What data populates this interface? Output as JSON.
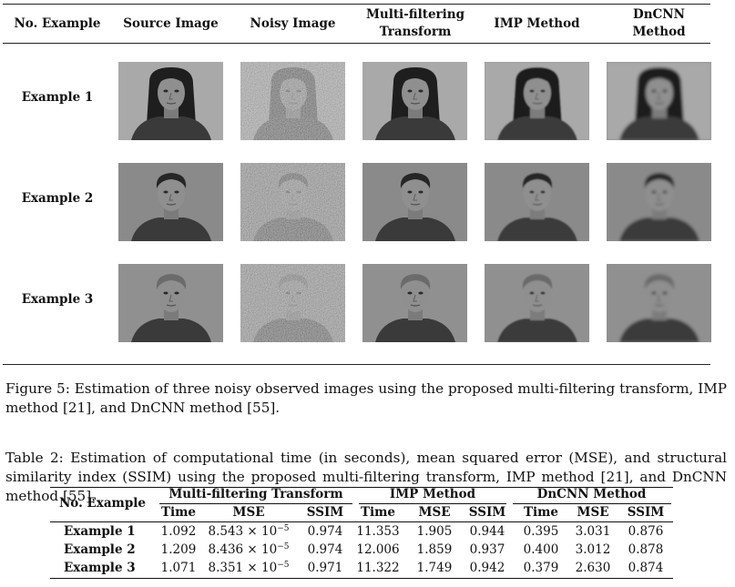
{
  "figure": {
    "columns": [
      "No. Example",
      "Source Image",
      "Noisy Image",
      "Multi-filtering Transform",
      "IMP Method",
      "DnCNN Method"
    ],
    "rows": [
      "Example 1",
      "Example 2",
      "Example 3"
    ],
    "caption": "Figure 5: Estimation of three noisy observed images using the proposed multi-filtering transform, IMP method [21], and DnCNN method [55]."
  },
  "table": {
    "caption": "Table 2: Estimation of computational time (in seconds), mean squared error (MSE), and structural similarity index (SSIM) using the proposed multi-filtering transform, IMP method [21], and DnCNN method [55].",
    "row_header": "No. Example",
    "groups": [
      "Multi-filtering Transform",
      "IMP Method",
      "DnCNN Method"
    ],
    "subheaders": [
      "Time",
      "MSE",
      "SSIM",
      "Time",
      "MSE",
      "SSIM",
      "Time",
      "MSE",
      "SSIM"
    ],
    "rows": [
      {
        "label": "Example 1",
        "cells": [
          "1.092",
          "8.543 × 10",
          "0.974",
          "11.353",
          "1.905",
          "0.944",
          "0.395",
          "3.031",
          "0.876"
        ]
      },
      {
        "label": "Example 2",
        "cells": [
          "1.209",
          "8.436 × 10",
          "0.974",
          "12.006",
          "1.859",
          "0.937",
          "0.400",
          "3.012",
          "0.878"
        ]
      },
      {
        "label": "Example 3",
        "cells": [
          "1.071",
          "8.351 × 10",
          "0.971",
          "11.322",
          "1.749",
          "0.942",
          "0.379",
          "2.630",
          "0.874"
        ]
      }
    ],
    "exponent": "−5"
  }
}
